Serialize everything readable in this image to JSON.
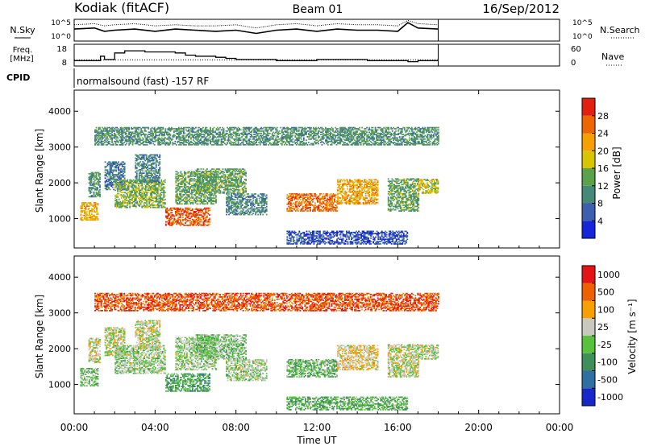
{
  "header": {
    "station": "Kodiak (fitACF)",
    "beam": "Beam 01",
    "date": "16/Sep/2012"
  },
  "chart_data": [
    {
      "type": "line",
      "panel": "noise",
      "left_label": "N.Sky",
      "right_label": "N.Search",
      "left_ticks": [
        "10^5",
        "10^0"
      ],
      "right_ticks": [
        "10^5",
        "10^0"
      ],
      "x_hours": [
        0.0,
        1.0,
        1.5,
        2.0,
        3.0,
        4.0,
        5.0,
        6.0,
        7.0,
        8.0,
        9.0,
        10.0,
        11.0,
        12.0,
        13.0,
        14.0,
        15.0,
        16.0,
        16.5,
        17.0,
        18.0
      ],
      "sky_level": [
        0.55,
        0.6,
        0.45,
        0.5,
        0.55,
        0.45,
        0.55,
        0.5,
        0.45,
        0.5,
        0.35,
        0.5,
        0.55,
        0.45,
        0.55,
        0.5,
        0.5,
        0.45,
        0.85,
        0.6,
        0.55
      ],
      "search_level": [
        0.75,
        0.8,
        0.7,
        0.75,
        0.8,
        0.7,
        0.75,
        0.7,
        0.7,
        0.75,
        0.6,
        0.75,
        0.8,
        0.7,
        0.8,
        0.75,
        0.75,
        0.7,
        0.95,
        0.8,
        0.75
      ]
    },
    {
      "type": "line",
      "panel": "frequency",
      "left_label": "Freq.",
      "left_unit": "[MHz]",
      "right_label": "Nave",
      "left_ticks": [
        18,
        8
      ],
      "right_ticks": [
        60,
        0
      ],
      "ylim": [
        8,
        18
      ],
      "x_hours": [
        0,
        1.0,
        1.3,
        1.5,
        2.0,
        2.5,
        3.5,
        5.0,
        5.5,
        6.0,
        6.5,
        7.0,
        7.5,
        8.0,
        9.0,
        10.0,
        11.0,
        12.0,
        13.0,
        14.0,
        14.5,
        15.0,
        16.0,
        16.5,
        17.0,
        18.0
      ],
      "freq_mhz": [
        10.5,
        10.5,
        12.5,
        11.0,
        14.0,
        15.0,
        14.5,
        14.0,
        13.0,
        12.5,
        12.5,
        12.0,
        11.5,
        11.0,
        11.0,
        10.5,
        10.5,
        11.0,
        11.0,
        11.0,
        10.5,
        10.5,
        10.5,
        10.0,
        10.5,
        10.5
      ],
      "nave_level": [
        0.28,
        0.28,
        0.28,
        0.28,
        0.28,
        0.28,
        0.28,
        0.28,
        0.28,
        0.28,
        0.28,
        0.28,
        0.28,
        0.28,
        0.28,
        0.28,
        0.28,
        0.28,
        0.28,
        0.28,
        0.28,
        0.28,
        0.28,
        0.28,
        0.28,
        0.28
      ]
    },
    {
      "type": "heatmap",
      "panel": "cpid",
      "label": "CPID",
      "text": "normalsound (fast) -157 RF"
    },
    {
      "type": "heatmap",
      "panel": "power",
      "ylabel": "Slant Range [km]",
      "yticks": [
        1000,
        2000,
        3000,
        4000
      ],
      "ylim": [
        180,
        4590
      ],
      "colorbar_label": "Power [dB]",
      "colorbar_ticks": [
        4,
        8,
        12,
        16,
        20,
        24,
        28
      ],
      "colorbar_range": [
        0,
        32
      ],
      "colors": [
        "#1525d8",
        "#3c5fb0",
        "#458a78",
        "#5aa14a",
        "#d9c400",
        "#f5a000",
        "#ee6600",
        "#e22010"
      ],
      "regions": [
        {
          "t": [
            0.3,
            1.2
          ],
          "r": [
            950,
            1450
          ],
          "level": 0.65
        },
        {
          "t": [
            0.7,
            1.3
          ],
          "r": [
            1600,
            2300
          ],
          "level": 0.35
        },
        {
          "t": [
            1.5,
            2.5
          ],
          "r": [
            1800,
            2600
          ],
          "level": 0.25
        },
        {
          "t": [
            2.0,
            4.5
          ],
          "r": [
            1300,
            2100
          ],
          "level": 0.45
        },
        {
          "t": [
            3.0,
            4.2
          ],
          "r": [
            2000,
            2800
          ],
          "level": 0.3
        },
        {
          "t": [
            4.5,
            6.7
          ],
          "r": [
            800,
            1300
          ],
          "level": 0.85
        },
        {
          "t": [
            5.0,
            7.0
          ],
          "r": [
            1400,
            2300
          ],
          "level": 0.4
        },
        {
          "t": [
            6.0,
            8.5
          ],
          "r": [
            1700,
            2400
          ],
          "level": 0.4
        },
        {
          "t": [
            7.5,
            9.5
          ],
          "r": [
            1100,
            1700
          ],
          "level": 0.3
        },
        {
          "t": [
            10.5,
            13.0
          ],
          "r": [
            1200,
            1700
          ],
          "level": 0.8
        },
        {
          "t": [
            13.0,
            15.0
          ],
          "r": [
            1400,
            2100
          ],
          "level": 0.7
        },
        {
          "t": [
            15.5,
            17.0
          ],
          "r": [
            1200,
            2100
          ],
          "level": 0.4
        },
        {
          "t": [
            17.0,
            18.0
          ],
          "r": [
            1700,
            2100
          ],
          "level": 0.55
        },
        {
          "t": [
            1.0,
            18.0
          ],
          "r": [
            3050,
            3550
          ],
          "level": 0.35
        },
        {
          "t": [
            10.5,
            16.5
          ],
          "r": [
            280,
            650
          ],
          "level": 0.15
        }
      ]
    },
    {
      "type": "heatmap",
      "panel": "velocity",
      "ylabel": "Slant Range [km]",
      "yticks": [
        1000,
        2000,
        3000,
        4000
      ],
      "ylim": [
        180,
        4590
      ],
      "xlabel": "Time UT",
      "xticks": [
        "00:00",
        "04:00",
        "08:00",
        "12:00",
        "16:00",
        "20:00",
        "00:00"
      ],
      "xlim": [
        0,
        24
      ],
      "colorbar_label": "Velocity [m s⁻¹]",
      "colorbar_ticks": [
        "1000",
        "500",
        "100",
        "25",
        "-25",
        "-100",
        "-500",
        "-1000"
      ],
      "colors": [
        "#1828c8",
        "#2f6fa4",
        "#3f8f5a",
        "#57c23c",
        "#c8c8c0",
        "#f7a000",
        "#ef6000",
        "#e41414"
      ],
      "regions": [
        {
          "t": [
            0.3,
            1.2
          ],
          "r": [
            950,
            1450
          ],
          "level": 0.45
        },
        {
          "t": [
            0.7,
            1.3
          ],
          "r": [
            1600,
            2300
          ],
          "level": 0.55
        },
        {
          "t": [
            1.5,
            2.5
          ],
          "r": [
            1800,
            2600
          ],
          "level": 0.55
        },
        {
          "t": [
            2.0,
            4.5
          ],
          "r": [
            1300,
            2100
          ],
          "level": 0.5
        },
        {
          "t": [
            3.0,
            4.2
          ],
          "r": [
            2000,
            2800
          ],
          "level": 0.55
        },
        {
          "t": [
            4.5,
            6.7
          ],
          "r": [
            800,
            1300
          ],
          "level": 0.35
        },
        {
          "t": [
            5.0,
            7.0
          ],
          "r": [
            1400,
            2300
          ],
          "level": 0.5
        },
        {
          "t": [
            6.0,
            8.5
          ],
          "r": [
            1700,
            2400
          ],
          "level": 0.45
        },
        {
          "t": [
            7.5,
            9.5
          ],
          "r": [
            1100,
            1700
          ],
          "level": 0.5
        },
        {
          "t": [
            10.5,
            13.0
          ],
          "r": [
            1200,
            1700
          ],
          "level": 0.42
        },
        {
          "t": [
            13.0,
            15.0
          ],
          "r": [
            1400,
            2100
          ],
          "level": 0.62
        },
        {
          "t": [
            15.5,
            17.0
          ],
          "r": [
            1200,
            2100
          ],
          "level": 0.55
        },
        {
          "t": [
            17.0,
            18.0
          ],
          "r": [
            1700,
            2100
          ],
          "level": 0.52
        },
        {
          "t": [
            1.0,
            18.0
          ],
          "r": [
            3050,
            3550
          ],
          "level": 0.85
        },
        {
          "t": [
            10.5,
            16.5
          ],
          "r": [
            280,
            650
          ],
          "level": 0.4
        }
      ]
    }
  ]
}
